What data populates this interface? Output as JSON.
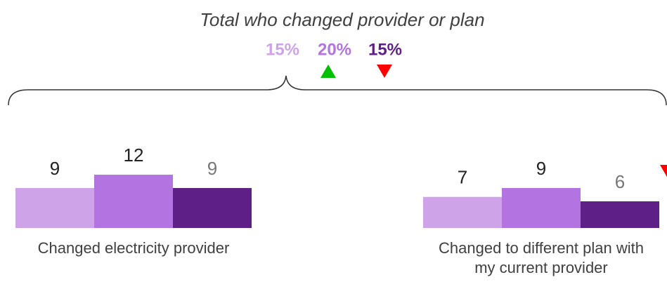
{
  "chart_data": {
    "type": "bar",
    "title": "Total who changed provider or plan",
    "totals": {
      "values": [
        15,
        20,
        15
      ],
      "value_labels": [
        "15%",
        "20%",
        "15%"
      ],
      "colors": [
        "#cfa3e8",
        "#b373e0",
        "#5e1f87"
      ],
      "trend": [
        null,
        "up",
        "down"
      ]
    },
    "categories": [
      "Changed electricity provider",
      "Changed to different plan with my current provider"
    ],
    "series": [
      {
        "color": "#cfa3e8",
        "label_color": "#222222",
        "values": [
          9,
          7
        ]
      },
      {
        "color": "#b373e0",
        "label_color": "#222222",
        "values": [
          12,
          9
        ]
      },
      {
        "color": "#5e1f87",
        "label_color": "#777777",
        "values": [
          9,
          6
        ],
        "trend": [
          null,
          "down"
        ]
      }
    ],
    "trend_colors": {
      "up": "#00c000",
      "down": "#ff0000"
    }
  }
}
